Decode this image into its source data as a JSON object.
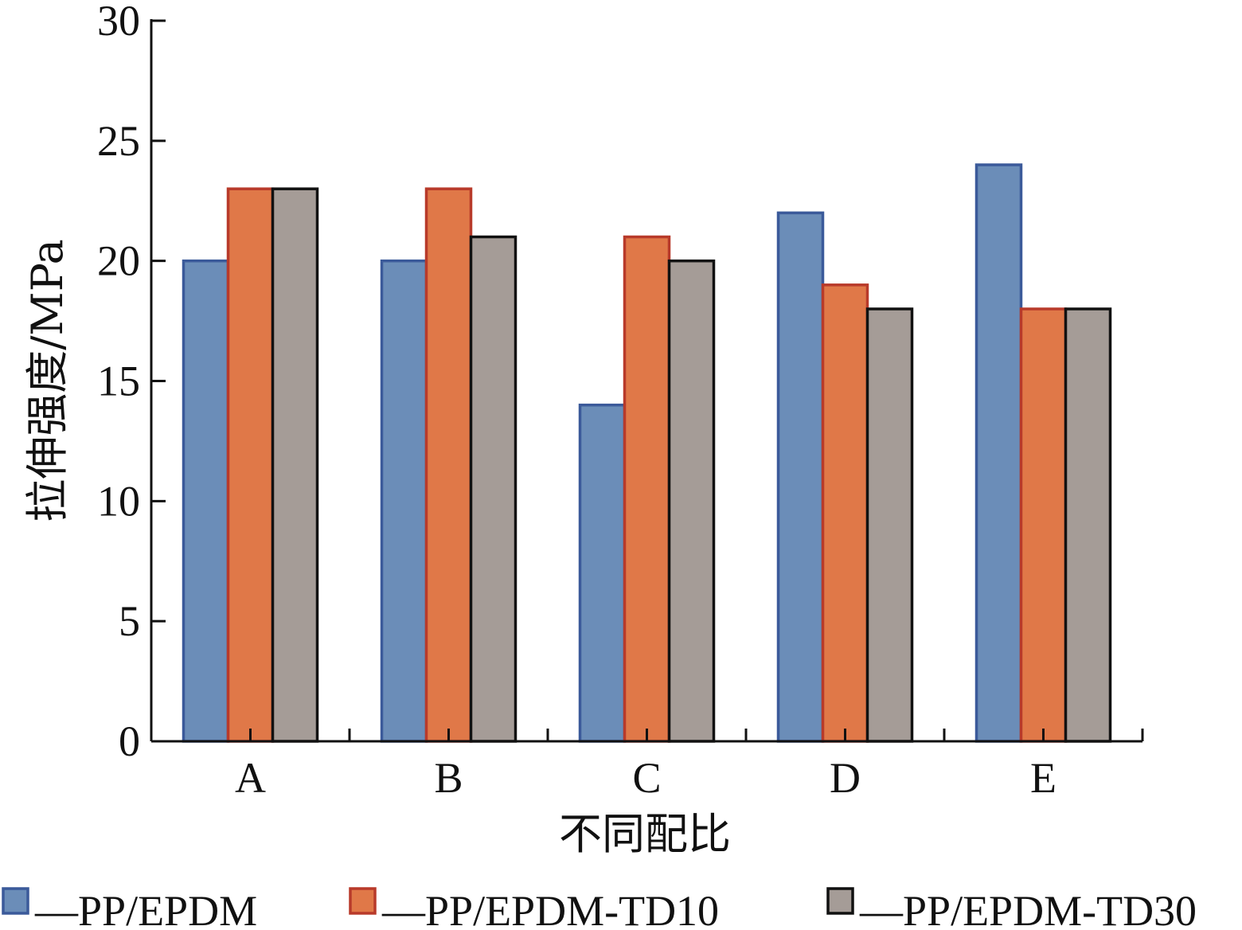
{
  "chart_data": {
    "type": "bar",
    "categories": [
      "A",
      "B",
      "C",
      "D",
      "E"
    ],
    "series": [
      {
        "name": "—PP/EPDM",
        "values": [
          20,
          20,
          14,
          22,
          24
        ],
        "color": "#6b8db8",
        "stroke": "#3b5a9a"
      },
      {
        "name": "—PP/EPDM-TD10",
        "values": [
          23,
          23,
          21,
          19,
          18
        ],
        "color": "#e07848",
        "stroke": "#b83a2a"
      },
      {
        "name": "—PP/EPDM-TD30",
        "values": [
          23,
          21,
          20,
          18,
          18
        ],
        "color": "#a59c97",
        "stroke": "#111111"
      }
    ],
    "title": "",
    "xlabel": "不同配比",
    "ylabel": "拉伸强度/MPa",
    "ylim": [
      0,
      30
    ],
    "yticks": [
      0,
      5,
      10,
      15,
      20,
      25,
      30
    ],
    "grid": false,
    "legend_position": "bottom"
  }
}
